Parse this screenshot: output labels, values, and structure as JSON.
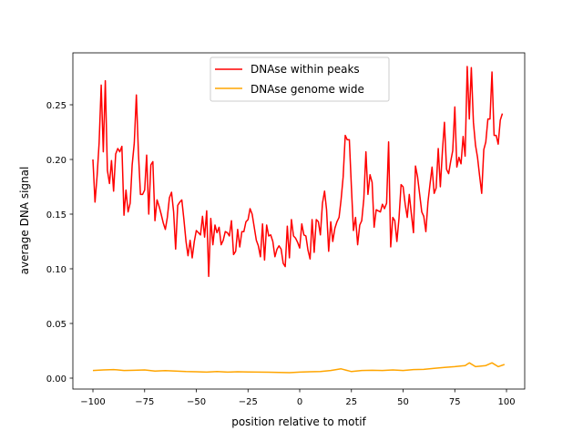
{
  "chart_data": {
    "type": "line",
    "title": "",
    "xlabel": "position relative to motif",
    "ylabel": "average DNA signal",
    "xlim": [
      -109.7,
      108.8
    ],
    "ylim": [
      -0.01,
      0.2975
    ],
    "xticks": [
      -100,
      -75,
      -50,
      -25,
      0,
      25,
      50,
      75,
      100
    ],
    "xtick_labels": [
      "−100",
      "−75",
      "−50",
      "−25",
      "0",
      "25",
      "50",
      "75",
      "100"
    ],
    "yticks": [
      0.0,
      0.05,
      0.1,
      0.15,
      0.2,
      0.25
    ],
    "ytick_labels": [
      "0.00",
      "0.05",
      "0.10",
      "0.15",
      "0.20",
      "0.25"
    ],
    "grid": false,
    "legend_position": "upper-center",
    "series": [
      {
        "name": "DNAse within peaks",
        "color": "#ff0000",
        "x_start": -100,
        "x_step": 1,
        "values": [
          0.2,
          0.161,
          0.185,
          0.215,
          0.268,
          0.207,
          0.272,
          0.19,
          0.178,
          0.199,
          0.171,
          0.205,
          0.21,
          0.207,
          0.212,
          0.149,
          0.172,
          0.152,
          0.16,
          0.195,
          0.215,
          0.259,
          0.205,
          0.168,
          0.168,
          0.172,
          0.204,
          0.15,
          0.195,
          0.198,
          0.144,
          0.163,
          0.157,
          0.15,
          0.142,
          0.136,
          0.147,
          0.165,
          0.17,
          0.152,
          0.118,
          0.158,
          0.161,
          0.163,
          0.145,
          0.125,
          0.112,
          0.126,
          0.11,
          0.125,
          0.135,
          0.133,
          0.131,
          0.148,
          0.129,
          0.153,
          0.093,
          0.146,
          0.122,
          0.14,
          0.133,
          0.138,
          0.122,
          0.126,
          0.134,
          0.133,
          0.13,
          0.144,
          0.113,
          0.116,
          0.136,
          0.12,
          0.134,
          0.134,
          0.143,
          0.145,
          0.155,
          0.15,
          0.138,
          0.126,
          0.121,
          0.111,
          0.141,
          0.108,
          0.14,
          0.13,
          0.131,
          0.125,
          0.111,
          0.118,
          0.121,
          0.118,
          0.105,
          0.102,
          0.139,
          0.11,
          0.145,
          0.13,
          0.128,
          0.124,
          0.119,
          0.141,
          0.131,
          0.13,
          0.117,
          0.109,
          0.145,
          0.115,
          0.145,
          0.143,
          0.131,
          0.16,
          0.171,
          0.154,
          0.116,
          0.143,
          0.125,
          0.137,
          0.143,
          0.147,
          0.163,
          0.184,
          0.222,
          0.218,
          0.218,
          0.174,
          0.135,
          0.147,
          0.122,
          0.14,
          0.144,
          0.164,
          0.207,
          0.168,
          0.186,
          0.179,
          0.138,
          0.154,
          0.153,
          0.152,
          0.159,
          0.155,
          0.16,
          0.216,
          0.12,
          0.147,
          0.144,
          0.125,
          0.146,
          0.177,
          0.175,
          0.159,
          0.147,
          0.168,
          0.15,
          0.133,
          0.194,
          0.184,
          0.168,
          0.152,
          0.148,
          0.134,
          0.161,
          0.177,
          0.193,
          0.169,
          0.174,
          0.21,
          0.175,
          0.208,
          0.234,
          0.191,
          0.187,
          0.198,
          0.208,
          0.248,
          0.193,
          0.202,
          0.196,
          0.221,
          0.203,
          0.285,
          0.237,
          0.284,
          0.234,
          0.213,
          0.202,
          0.185,
          0.169,
          0.209,
          0.216,
          0.237,
          0.237,
          0.28,
          0.222,
          0.222,
          0.214,
          0.236,
          0.242
        ]
      },
      {
        "name": "DNAse genome wide",
        "color": "#ffa500",
        "x": [
          -100,
          -95,
          -90,
          -85,
          -80,
          -75,
          -70,
          -65,
          -60,
          -55,
          -50,
          -45,
          -40,
          -35,
          -30,
          -25,
          -20,
          -15,
          -10,
          -5,
          0,
          5,
          10,
          15,
          20,
          25,
          30,
          35,
          40,
          45,
          50,
          55,
          60,
          65,
          70,
          75,
          80,
          82,
          85,
          90,
          93,
          96,
          99
        ],
        "values": [
          0.007,
          0.0075,
          0.0078,
          0.007,
          0.0072,
          0.0075,
          0.0065,
          0.0068,
          0.0065,
          0.006,
          0.0058,
          0.0055,
          0.006,
          0.0055,
          0.0058,
          0.0056,
          0.0055,
          0.0054,
          0.0052,
          0.005,
          0.0055,
          0.0058,
          0.006,
          0.007,
          0.0085,
          0.006,
          0.007,
          0.0072,
          0.007,
          0.0075,
          0.007,
          0.0078,
          0.008,
          0.009,
          0.0098,
          0.0105,
          0.0115,
          0.014,
          0.0105,
          0.0115,
          0.014,
          0.0105,
          0.0125
        ]
      }
    ]
  }
}
